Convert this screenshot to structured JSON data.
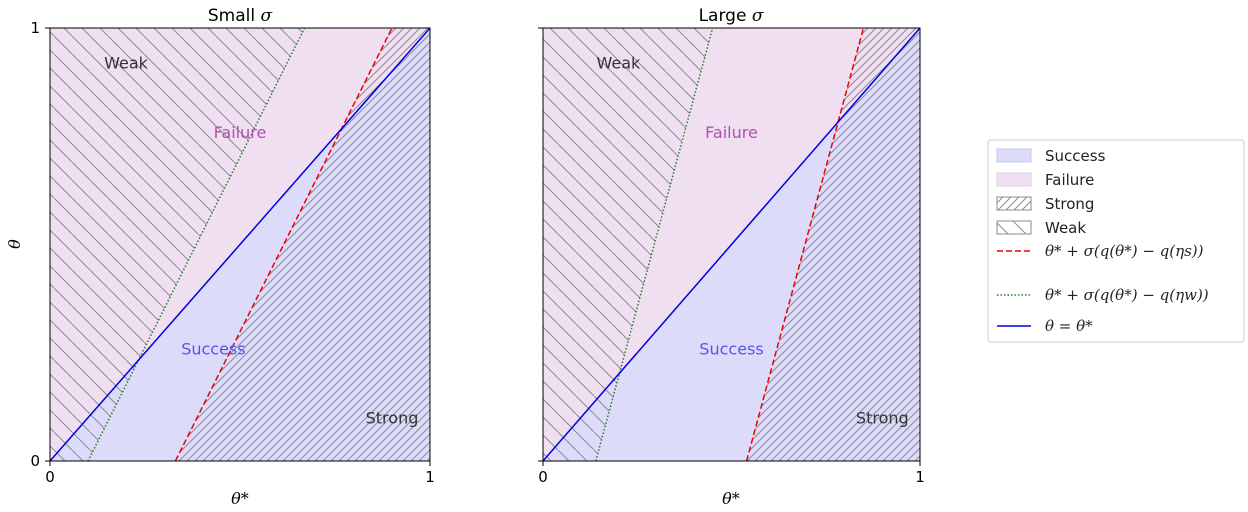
{
  "chart_data": [
    {
      "type": "area",
      "title_prefix": "Small ",
      "title_symbol": "σ",
      "xlabel": "θ*",
      "ylabel": "θ",
      "xlim": [
        0,
        1
      ],
      "ylim": [
        0,
        1
      ],
      "xticks": [
        "0",
        "1"
      ],
      "yticks": [
        "0",
        "1"
      ],
      "lines": {
        "identity": {
          "x": [
            0,
            1
          ],
          "y": [
            0,
            1
          ]
        },
        "strong_boundary": {
          "x": [
            0.33,
            0.9
          ],
          "y": [
            0,
            1
          ]
        },
        "weak_boundary": {
          "x": [
            0.1,
            0.67
          ],
          "y": [
            0,
            1
          ]
        }
      },
      "annotations": {
        "weak": "Weak",
        "failure": "Failure",
        "success": "Success",
        "strong": "Strong"
      },
      "annotation_pos": {
        "weak": [
          0.2,
          0.92
        ],
        "failure": [
          0.5,
          0.76
        ],
        "success": [
          0.43,
          0.26
        ],
        "strong": [
          0.9,
          0.1
        ]
      }
    },
    {
      "type": "area",
      "title_prefix": "Large ",
      "title_symbol": "σ",
      "xlabel": "θ*",
      "ylabel": "",
      "xlim": [
        0,
        1
      ],
      "ylim": [
        0,
        1
      ],
      "xticks": [
        "0",
        "1"
      ],
      "yticks": [
        "0",
        "1"
      ],
      "lines": {
        "identity": {
          "x": [
            0,
            1
          ],
          "y": [
            0,
            1
          ]
        },
        "strong_boundary": {
          "x": [
            0.54,
            0.85
          ],
          "y": [
            0,
            1
          ]
        },
        "weak_boundary": {
          "x": [
            0.14,
            0.45
          ],
          "y": [
            0,
            1
          ]
        }
      },
      "annotations": {
        "weak": "Weak",
        "failure": "Failure",
        "success": "Success",
        "strong": "Strong"
      },
      "annotation_pos": {
        "weak": [
          0.2,
          0.92
        ],
        "failure": [
          0.5,
          0.76
        ],
        "success": [
          0.5,
          0.26
        ],
        "strong": [
          0.9,
          0.1
        ]
      }
    }
  ],
  "legend": {
    "placement": "right",
    "entries": [
      {
        "label": "Success",
        "kind": "patch-success"
      },
      {
        "label": "Failure",
        "kind": "patch-failure"
      },
      {
        "label": "Strong",
        "kind": "patch-strong"
      },
      {
        "label": "Weak",
        "kind": "patch-weak"
      },
      {
        "label": "θ* + σ(q(θ*) − q(ηs))",
        "kind": "line-strong"
      },
      {
        "label": "θ* + σ(q(θ*) − q(ηw))",
        "kind": "line-weak"
      },
      {
        "label": "θ = θ*",
        "kind": "line-identity"
      }
    ]
  },
  "colors": {
    "success_fill": "#dcdcfa",
    "failure_fill": "#efdff0",
    "identity_line": "#0000dd",
    "strong_line": "#ee0000",
    "weak_line": "#2a7a2a",
    "hatch": "#8a8a9a",
    "success_text": "#5555ee",
    "failure_text": "#b050b0",
    "label_text": "#333333"
  }
}
